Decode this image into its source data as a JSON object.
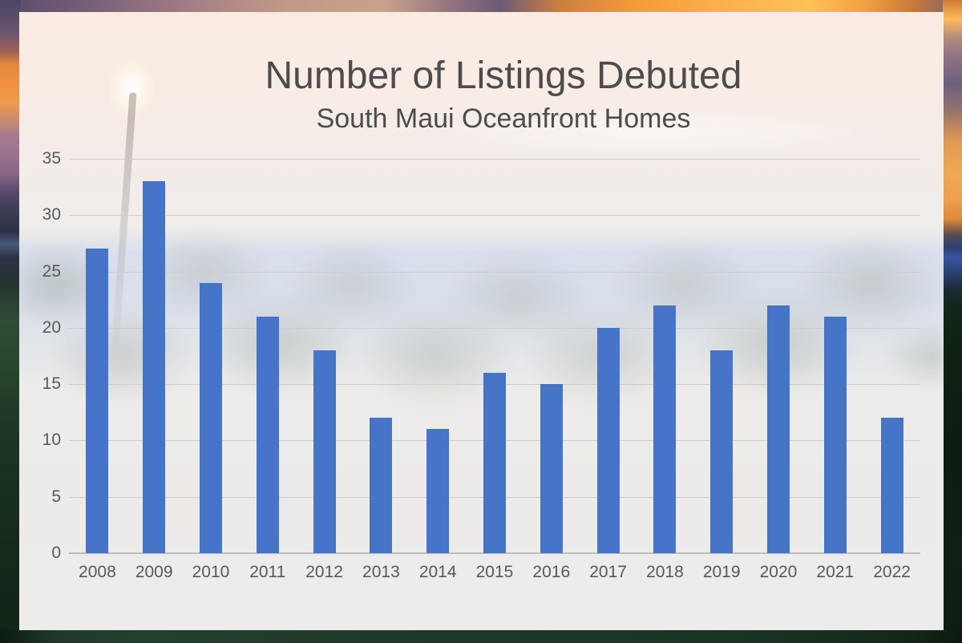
{
  "page": {
    "kind": "bar-chart-over-photo",
    "background_scene": "maui-sunset-ocean-palms-photo"
  },
  "chart": {
    "title": "Number of Listings Debuted",
    "subtitle": "South Maui Oceanfront Homes"
  },
  "chart_data": {
    "type": "bar",
    "title": "Number of Listings Debuted",
    "subtitle": "South Maui Oceanfront Homes",
    "categories": [
      "2008",
      "2009",
      "2010",
      "2011",
      "2012",
      "2013",
      "2014",
      "2015",
      "2016",
      "2017",
      "2018",
      "2019",
      "2020",
      "2021",
      "2022"
    ],
    "values": [
      27,
      33,
      24,
      21,
      18,
      12,
      11,
      16,
      15,
      20,
      22,
      18,
      22,
      21,
      12
    ],
    "xlabel": "",
    "ylabel": "",
    "ylim": [
      0,
      35
    ],
    "yticks": [
      0,
      5,
      10,
      15,
      20,
      25,
      30,
      35
    ],
    "grid": true,
    "legend": false,
    "bar_color": "#4674c6",
    "gridline_color": "#d1cdc9",
    "axis_line_color": "#c1beba",
    "tick_label_color": "#595959",
    "title_color": "#4c4c4c"
  }
}
